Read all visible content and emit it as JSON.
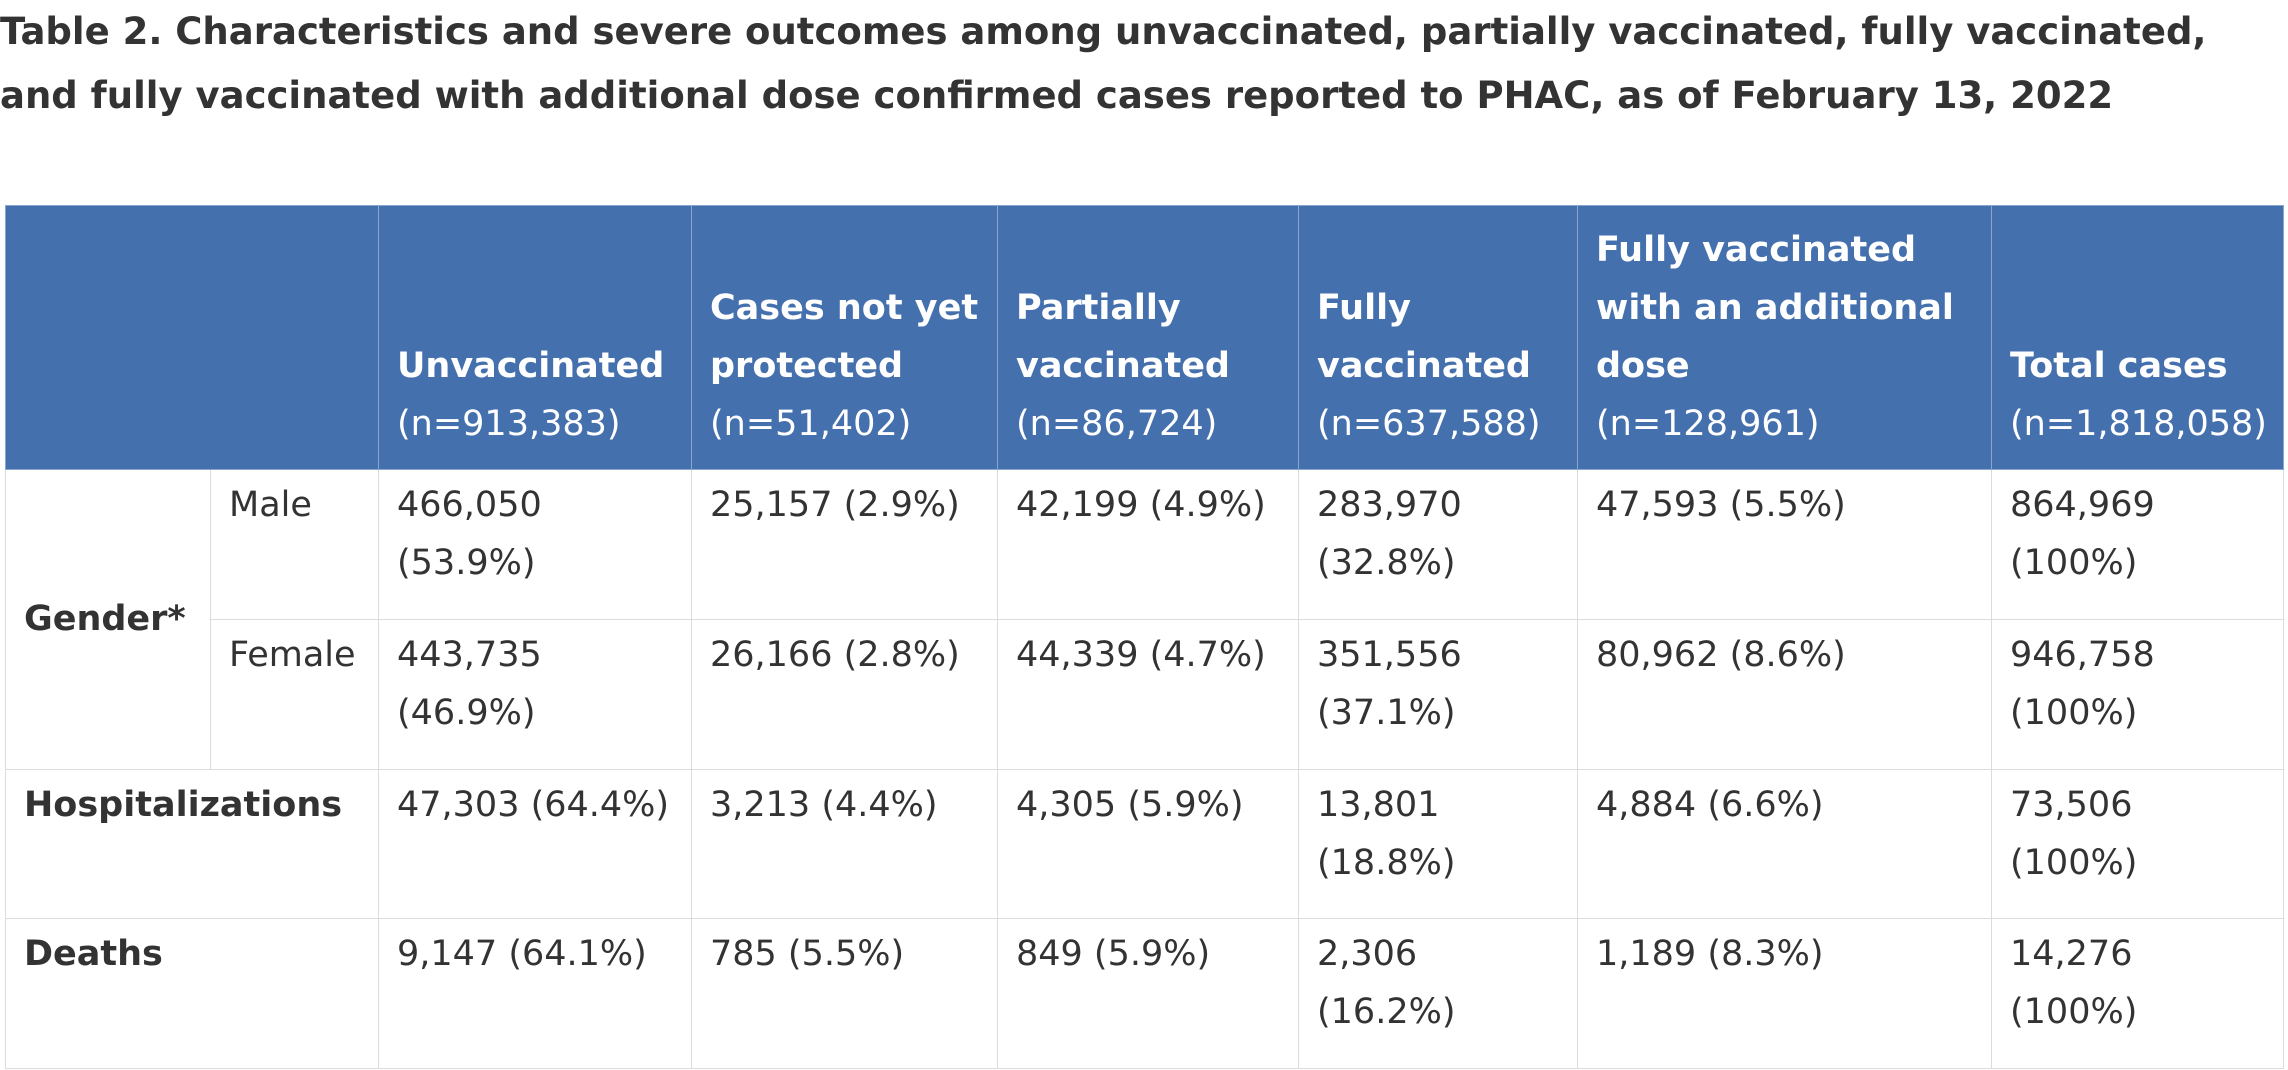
{
  "caption": "Table 2. Characteristics and severe outcomes among unvaccinated, partially vaccinated, fully vaccinated, and fully vaccinated with additional dose confirmed cases reported to PHAC, as of February 13, 2022",
  "columns": [
    {
      "label": "Unvaccinated",
      "n": "(n=913,383)"
    },
    {
      "label": "Cases not yet protected",
      "n": "(n=51,402)"
    },
    {
      "label": "Partially vaccinated",
      "n": "(n=86,724)"
    },
    {
      "label": "Fully vaccinated",
      "n": "(n=637,588)"
    },
    {
      "label": "Fully vaccinated with an additional dose",
      "n": "(n=128,961)"
    },
    {
      "label": "Total cases",
      "n": "(n=1,818,058)"
    }
  ],
  "gender_label": "Gender*",
  "rows": [
    {
      "label": "Male",
      "cells": [
        "466,050 (53.9%)",
        "25,157 (2.9%)",
        "42,199 (4.9%)",
        "283,970 (32.8%)",
        "47,593 (5.5%)",
        "864,969 (100%)"
      ]
    },
    {
      "label": "Female",
      "cells": [
        "443,735 (46.9%)",
        "26,166 (2.8%)",
        "44,339 (4.7%)",
        "351,556 (37.1%)",
        "80,962 (8.6%)",
        "946,758 (100%)"
      ]
    },
    {
      "label": "Hospitalizations",
      "cells": [
        "47,303 (64.4%)",
        "3,213 (4.4%)",
        "4,305 (5.9%)",
        "13,801 (18.8%)",
        "4,884 (6.6%)",
        "73,506 (100%)"
      ]
    },
    {
      "label": "Deaths",
      "cells": [
        "9,147 (64.1%)",
        "785 (5.5%)",
        "849 (5.9%)",
        "2,306 (16.2%)",
        "1,189 (8.3%)",
        "14,276 (100%)"
      ]
    }
  ],
  "colors": {
    "header_bg": "#4470ae",
    "header_text": "#ffffff",
    "text": "#333333",
    "border": "#dcdcdc"
  }
}
